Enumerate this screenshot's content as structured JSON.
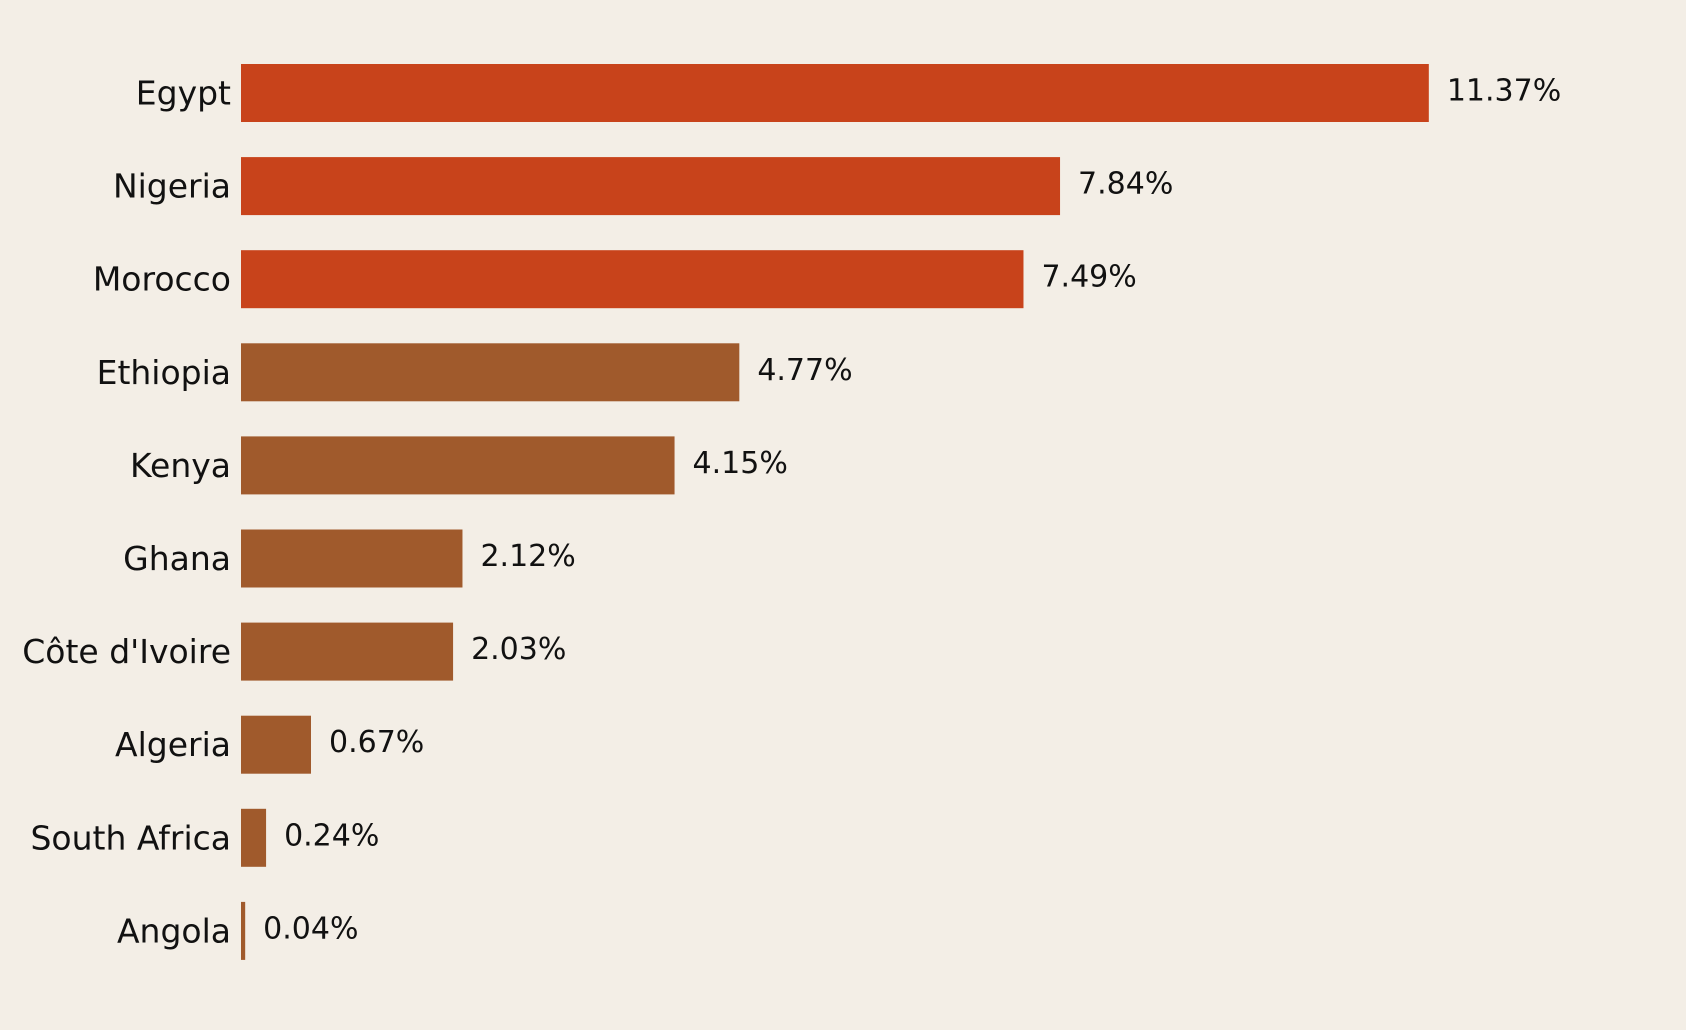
{
  "colors": {
    "background": "#f3eee6",
    "highlight": "#c8431b",
    "base": "#a05a2c",
    "text": "#111111"
  },
  "chart_data": {
    "type": "bar",
    "orientation": "horizontal",
    "title": "",
    "xlabel": "",
    "ylabel": "",
    "grid": false,
    "legend": "none",
    "xlim": [
      0,
      13.2
    ],
    "categories": [
      "Egypt",
      "Nigeria",
      "Morocco",
      "Ethiopia",
      "Kenya",
      "Ghana",
      "Côte d'Ivoire",
      "Algeria",
      "South Africa",
      "Angola"
    ],
    "values": [
      11.37,
      7.84,
      7.49,
      4.77,
      4.15,
      2.12,
      2.03,
      0.67,
      0.24,
      0.04
    ],
    "value_labels": [
      "11.37%",
      "7.84%",
      "7.49%",
      "4.77%",
      "4.15%",
      "2.12%",
      "2.03%",
      "0.67%",
      "0.24%",
      "0.04%"
    ],
    "highlighted": [
      true,
      true,
      true,
      false,
      false,
      false,
      false,
      false,
      false,
      false
    ]
  }
}
